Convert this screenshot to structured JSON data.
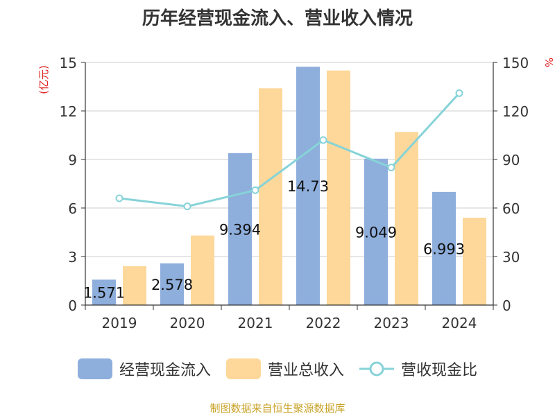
{
  "chart_data": {
    "type": "bar",
    "title": "历年经营现金流入、营业收入情况",
    "categories": [
      "2019",
      "2020",
      "2021",
      "2022",
      "2023",
      "2024"
    ],
    "left_axis_label": "(亿元)",
    "right_axis_label": "%",
    "left_ylim": [
      0,
      15
    ],
    "left_ticks": [
      "0",
      "3",
      "6",
      "9",
      "12",
      "15"
    ],
    "right_ylim": [
      0,
      150
    ],
    "right_ticks": [
      "0",
      "30",
      "60",
      "90",
      "120",
      "150"
    ],
    "grid": true,
    "legend_position": "bottom",
    "series": [
      {
        "name": "经营现金流入",
        "type": "bar",
        "axis": "left",
        "color": "#8eaedc",
        "values": [
          1.571,
          2.578,
          9.394,
          14.73,
          9.049,
          6.993
        ],
        "labels": [
          "1.571",
          "2.578",
          "9.394",
          "14.73",
          "9.049",
          "6.993"
        ]
      },
      {
        "name": "营业总收入",
        "type": "bar",
        "axis": "left",
        "color": "#fdd89a",
        "values": [
          2.4,
          4.3,
          13.4,
          14.5,
          10.7,
          5.4
        ]
      },
      {
        "name": "营收现金比",
        "type": "line",
        "axis": "right",
        "color": "#86d3d8",
        "values": [
          66,
          61,
          71,
          102,
          85,
          131
        ]
      }
    ]
  },
  "source_note": "制图数据来自恒生聚源数据库"
}
